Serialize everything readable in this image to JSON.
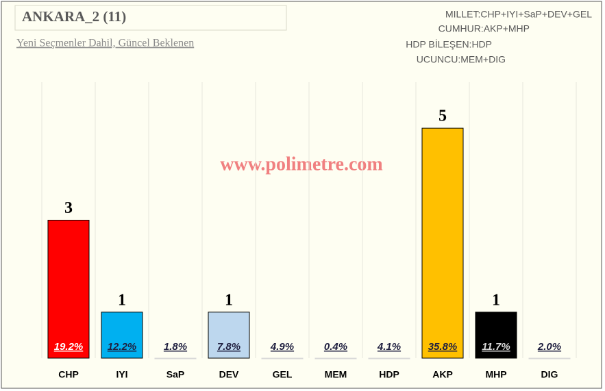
{
  "chart_data": {
    "type": "bar",
    "title": "ANKARA_2 (11)",
    "subtitle": "Yeni Seçmenler Dahil, Güncel Beklenen",
    "watermark": "www.polimetre.com",
    "notes": [
      "MILLET:CHP+IYI+SaP+DEV+GEL",
      "CUMHUR:AKP+MHP",
      "HDP BİLEŞEN:HDP",
      "UCUNCU:MEM+DIG"
    ],
    "categories": [
      "CHP",
      "IYI",
      "SaP",
      "DEV",
      "GEL",
      "MEM",
      "HDP",
      "AKP",
      "MHP",
      "DIG"
    ],
    "values": [
      3,
      1,
      0,
      1,
      0,
      0,
      0,
      5,
      1,
      0
    ],
    "colors": [
      "#ff0000",
      "#00b0f0",
      "#d9d9d9",
      "#bdd7ee",
      "#d9d9d9",
      "#d9d9d9",
      "#d9d9d9",
      "#ffc000",
      "#000000",
      "#d9d9d9"
    ],
    "shares": {
      "values": [
        19.2,
        12.2,
        1.8,
        7.8,
        4.9,
        0.4,
        4.1,
        35.8,
        11.7,
        2.0
      ],
      "value_labels": [
        "19.2%",
        "12.2%",
        "1.8%",
        "7.8%",
        "4.9%",
        "0.4%",
        "4.1%",
        "35.8%",
        "11.7%",
        "2.0%"
      ],
      "label_colors": [
        "#ffffff",
        "#1f1f3f",
        "#1f1f3f",
        "#1f1f3f",
        "#1f1f3f",
        "#1f1f3f",
        "#1f1f3f",
        "#1f1f3f",
        "#d9d9d9",
        "#1f1f3f"
      ]
    },
    "ylim": [
      0,
      6
    ],
    "grid": true
  }
}
